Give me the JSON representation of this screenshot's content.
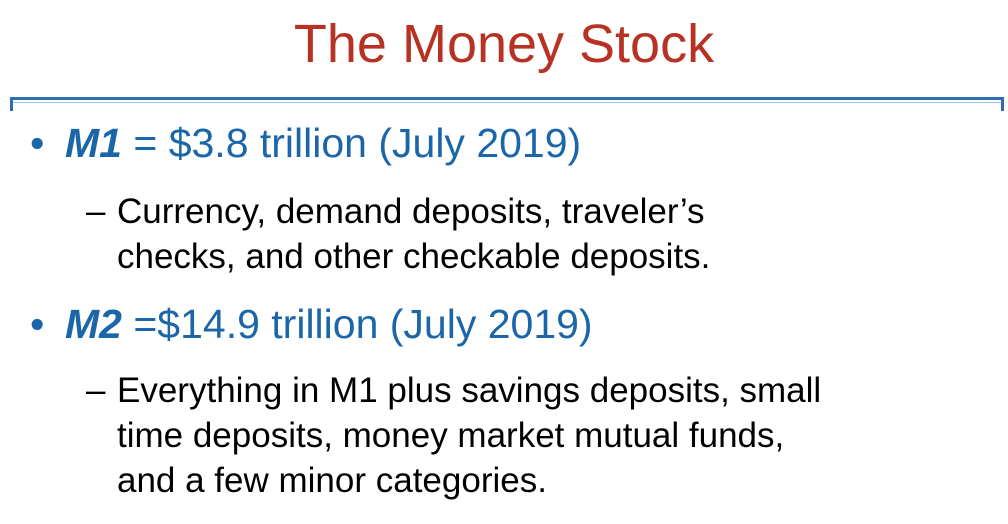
{
  "slide": {
    "title": "The Money Stock",
    "colors": {
      "title": "#b83224",
      "bullet": "#1b66a8",
      "rule": "#2f6db3",
      "body": "#000000"
    },
    "bullets": [
      {
        "marker": "•",
        "term": "M1",
        "rest": " = $3.8 trillion (July 2019)",
        "sub_marker": "–",
        "sub_lines": [
          "Currency, demand deposits, traveler’s",
          "checks, and other checkable deposits."
        ]
      },
      {
        "marker": "•",
        "term": "M2",
        "rest": " =$14.9 trillion (July 2019)",
        "sub_marker": "–",
        "sub_lines": [
          "Everything in M1 plus savings deposits, small",
          "time deposits, money market mutual funds,",
          "and a few minor categories."
        ]
      }
    ]
  }
}
